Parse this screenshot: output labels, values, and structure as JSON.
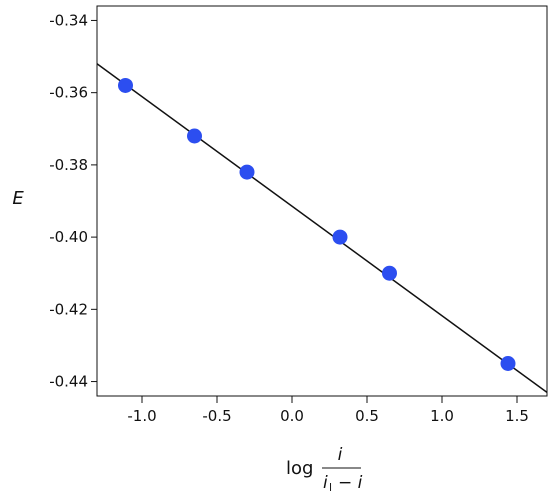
{
  "chart_data": {
    "type": "scatter",
    "xlabel": {
      "prefix": "log",
      "numerator": "i",
      "denominator_main": "i",
      "denominator_subscript": "l",
      "denominator_suffix": "− i"
    },
    "ylabel": "E",
    "xlim": [
      -1.3,
      1.7
    ],
    "ylim": [
      -0.444,
      -0.336
    ],
    "x_ticks": [
      -1.0,
      -0.5,
      0.0,
      0.5,
      1.0,
      1.5
    ],
    "x_tick_labels": [
      "-1.0",
      "-0.5",
      "0.0",
      "0.5",
      "1.0",
      "1.5"
    ],
    "y_ticks": [
      -0.34,
      -0.36,
      -0.38,
      -0.4,
      -0.42,
      -0.44
    ],
    "y_tick_labels": [
      "-0.34",
      "-0.36",
      "-0.38",
      "-0.40",
      "-0.42",
      "-0.44"
    ],
    "grid": false,
    "series": [
      {
        "values": [
          {
            "x": -1.11,
            "y": -0.358
          },
          {
            "x": -0.65,
            "y": -0.372
          },
          {
            "x": -0.3,
            "y": -0.382
          },
          {
            "x": 0.32,
            "y": -0.4
          },
          {
            "x": 0.65,
            "y": -0.41
          },
          {
            "x": 1.44,
            "y": -0.435
          }
        ]
      }
    ],
    "fit_line": {
      "x": [
        -1.3,
        1.7
      ],
      "y": [
        -0.352,
        -0.443
      ]
    },
    "colors": {
      "points": "#2c4ef0",
      "line": "#111111",
      "axes": "#111111"
    }
  }
}
